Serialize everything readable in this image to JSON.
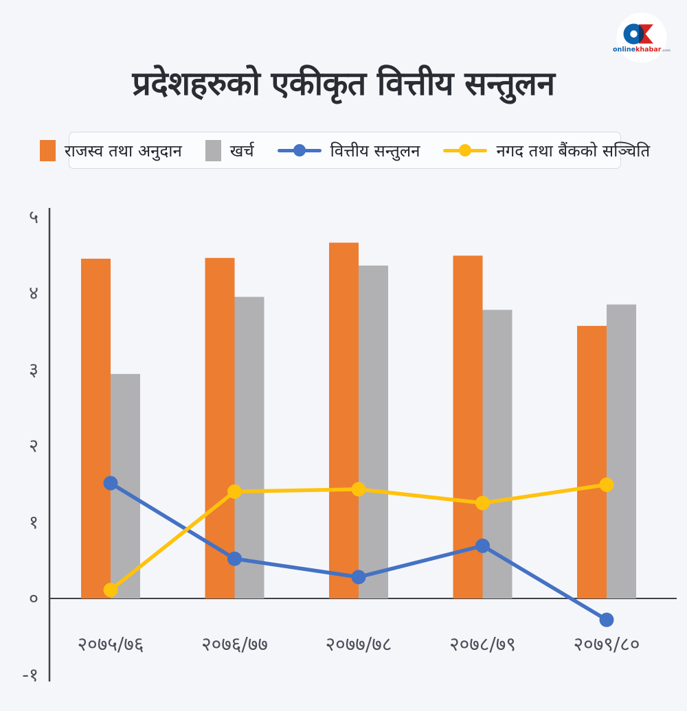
{
  "title": "प्रदेशहरुको एकीकृत वित्तीय सन्तुलन",
  "logo": {
    "brand_online": "online",
    "brand_khabar": "khabar",
    "brand_tld": ".com",
    "colors": {
      "circle_blue": "#0e63ad",
      "overlap_navy": "#17375f",
      "k_red": "#d8231f"
    }
  },
  "colors": {
    "background": "#f5f6fa",
    "axis_line": "#3e4147",
    "axis_text": "#4a4e57",
    "title_text": "#292c33",
    "legend_border": "#d8dae0",
    "legend_bg": "#fbfcfe"
  },
  "chart_data": {
    "type": "combo-bar-line",
    "title": "प्रदेशहरुको एकीकृत वित्तीय सन्तुलन",
    "categories": [
      "२०७५/७६",
      "२०७६/७७",
      "२०७७/७८",
      "२०७८/७९",
      "२०७९/८०"
    ],
    "series": [
      {
        "name": "राजस्व तथा अनुदान",
        "type": "bar",
        "color": "#ED7D31",
        "values": [
          4.45,
          4.46,
          4.66,
          4.49,
          3.57
        ]
      },
      {
        "name": "खर्च",
        "type": "bar",
        "color": "#B1B1B3",
        "values": [
          2.94,
          3.95,
          4.36,
          3.78,
          3.85
        ]
      },
      {
        "name": "वित्तीय सन्तुलन",
        "type": "line",
        "color": "#4472C4",
        "values": [
          1.51,
          0.52,
          0.28,
          0.69,
          -0.28
        ]
      },
      {
        "name": "नगद तथा बैंकको सञ्चिति",
        "type": "line",
        "color": "#FFC20D",
        "values": [
          0.11,
          1.4,
          1.43,
          1.25,
          1.49
        ]
      }
    ],
    "y_ticks": [
      {
        "value": 5,
        "label": "५"
      },
      {
        "value": 4,
        "label": "४"
      },
      {
        "value": 3,
        "label": "३"
      },
      {
        "value": 2,
        "label": "२"
      },
      {
        "value": 1,
        "label": "१"
      },
      {
        "value": 0,
        "label": "०"
      },
      {
        "value": -1,
        "label": "-१"
      }
    ],
    "ylim": [
      -1,
      5
    ],
    "grid": false,
    "legend_position": "top"
  }
}
